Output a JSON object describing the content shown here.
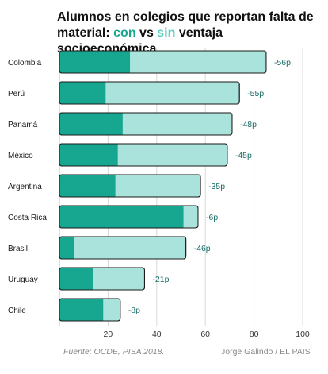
{
  "title": {
    "line1": "Alumnos en colegios que reportan falta de",
    "line2_prefix": "material: ",
    "con": "con",
    "vs": " vs ",
    "sin": "sin",
    "line2_suffix": " ventaja socioeconómica"
  },
  "footer": {
    "source": "Fuente: OCDE, PISA 2018.",
    "credit": "Jorge Galindo / EL PAIS"
  },
  "colors": {
    "con": "#17a68f",
    "sin": "#a9e3dc",
    "border": "#1a1a1a",
    "diff_text": "#1a6e67",
    "grid": "#d9d9d9"
  },
  "chart_data": {
    "type": "bar",
    "orientation": "horizontal",
    "overlapped": true,
    "categories": [
      "Colombia",
      "Perú",
      "Panamá",
      "México",
      "Argentina",
      "Costa Rica",
      "Brasil",
      "Uruguay",
      "Chile"
    ],
    "series": [
      {
        "name": "con",
        "values": [
          29,
          19,
          26,
          24,
          23,
          51,
          6,
          14,
          18
        ]
      },
      {
        "name": "sin",
        "values": [
          85,
          74,
          71,
          69,
          58,
          57,
          52,
          35,
          25
        ]
      }
    ],
    "diff_labels": [
      "-56p",
      "-55p",
      "-48p",
      "-45p",
      "-35p",
      "-6p",
      "-46p",
      "-21p",
      "-8p"
    ],
    "xlim": [
      0,
      100
    ],
    "xticks": [
      20,
      40,
      60,
      80,
      100
    ],
    "grid": true
  }
}
